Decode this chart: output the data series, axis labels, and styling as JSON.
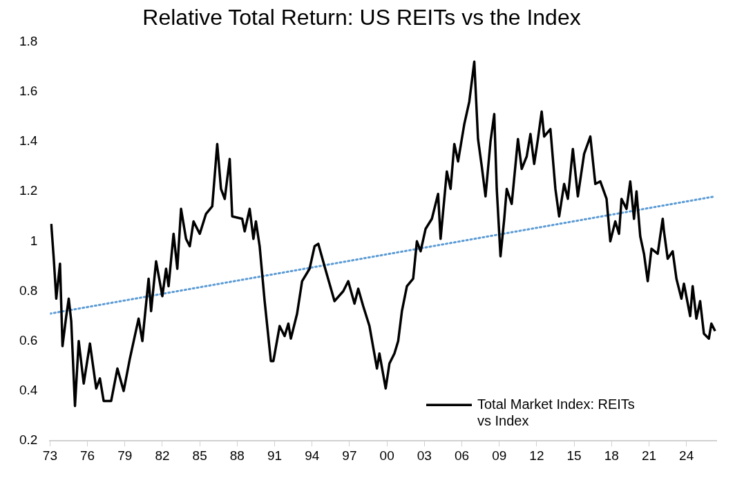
{
  "chart_data": {
    "type": "line",
    "title": "Relative Total Return: US REITs vs the Index",
    "x": [
      1973.1,
      1973.3,
      1973.5,
      1973.8,
      1974.0,
      1974.3,
      1974.5,
      1974.7,
      1975.0,
      1975.3,
      1975.7,
      1976.2,
      1976.7,
      1977.0,
      1977.3,
      1977.9,
      1978.4,
      1978.9,
      1979.4,
      1980.1,
      1980.4,
      1980.9,
      1981.1,
      1981.5,
      1982.0,
      1982.3,
      1982.5,
      1982.9,
      1983.2,
      1983.5,
      1983.9,
      1984.2,
      1984.5,
      1985.0,
      1985.5,
      1986.0,
      1986.4,
      1986.7,
      1987.0,
      1987.4,
      1987.6,
      1988.4,
      1988.6,
      1989.0,
      1989.3,
      1989.5,
      1989.8,
      1990.2,
      1990.7,
      1990.9,
      1991.4,
      1991.8,
      1992.1,
      1992.3,
      1992.8,
      1993.2,
      1993.8,
      1994.2,
      1994.5,
      1995.0,
      1995.8,
      1996.5,
      1996.9,
      1997.4,
      1997.7,
      1998.1,
      1998.6,
      1999.2,
      1999.4,
      1999.9,
      2000.2,
      2000.6,
      2000.9,
      2001.2,
      2001.6,
      2002.1,
      2002.4,
      2002.7,
      2003.1,
      2003.6,
      2004.1,
      2004.3,
      2004.8,
      2005.1,
      2005.4,
      2005.7,
      2006.2,
      2006.6,
      2007.0,
      2007.3,
      2007.6,
      2007.9,
      2008.3,
      2008.6,
      2008.8,
      2009.1,
      2009.4,
      2009.6,
      2010.0,
      2010.5,
      2010.8,
      2011.2,
      2011.5,
      2011.8,
      2012.1,
      2012.4,
      2012.6,
      2013.1,
      2013.5,
      2013.8,
      2014.2,
      2014.5,
      2014.9,
      2015.3,
      2015.8,
      2016.3,
      2016.7,
      2017.1,
      2017.6,
      2017.9,
      2018.3,
      2018.6,
      2018.8,
      2019.2,
      2019.5,
      2019.8,
      2020.0,
      2020.3,
      2020.6,
      2020.9,
      2021.2,
      2021.7,
      2022.1,
      2022.2,
      2022.5,
      2022.9,
      2023.2,
      2023.6,
      2023.8,
      2024.3,
      2024.5,
      2024.8,
      2025.1,
      2025.4,
      2025.8,
      2026.0,
      2026.3
    ],
    "series": [
      {
        "name": "Total Market Index: REITs vs Index",
        "color": "#000000",
        "line_style": "solid",
        "values": [
          1.07,
          0.93,
          0.77,
          0.91,
          0.58,
          0.7,
          0.77,
          0.68,
          0.34,
          0.6,
          0.43,
          0.59,
          0.41,
          0.45,
          0.36,
          0.36,
          0.49,
          0.4,
          0.53,
          0.69,
          0.6,
          0.85,
          0.72,
          0.92,
          0.78,
          0.89,
          0.82,
          1.03,
          0.89,
          1.13,
          1.01,
          0.98,
          1.08,
          1.03,
          1.11,
          1.14,
          1.39,
          1.21,
          1.17,
          1.33,
          1.1,
          1.09,
          1.04,
          1.13,
          1.01,
          1.08,
          0.98,
          0.76,
          0.52,
          0.52,
          0.66,
          0.62,
          0.67,
          0.61,
          0.71,
          0.84,
          0.89,
          0.98,
          0.99,
          0.9,
          0.76,
          0.8,
          0.84,
          0.75,
          0.81,
          0.74,
          0.66,
          0.49,
          0.55,
          0.41,
          0.51,
          0.55,
          0.6,
          0.72,
          0.82,
          0.85,
          1.0,
          0.96,
          1.05,
          1.09,
          1.19,
          1.01,
          1.28,
          1.21,
          1.39,
          1.32,
          1.47,
          1.56,
          1.72,
          1.41,
          1.3,
          1.18,
          1.4,
          1.51,
          1.21,
          0.94,
          1.09,
          1.21,
          1.15,
          1.41,
          1.29,
          1.34,
          1.43,
          1.31,
          1.41,
          1.52,
          1.42,
          1.45,
          1.21,
          1.1,
          1.23,
          1.17,
          1.37,
          1.18,
          1.35,
          1.42,
          1.23,
          1.24,
          1.17,
          1.0,
          1.08,
          1.03,
          1.17,
          1.13,
          1.24,
          1.09,
          1.2,
          1.02,
          0.95,
          0.84,
          0.97,
          0.95,
          1.09,
          1.04,
          0.93,
          0.96,
          0.85,
          0.77,
          0.83,
          0.7,
          0.82,
          0.69,
          0.76,
          0.63,
          0.61,
          0.67,
          0.64
        ]
      },
      {
        "type": "line",
        "color": "#5b9bd5",
        "line_style": "dotted",
        "x": [
          1973,
          2026.3
        ],
        "values": [
          0.71,
          1.18
        ]
      }
    ],
    "xlim": [
      1973,
      2026.4
    ],
    "xticks": [
      {
        "value": 1973,
        "label": "73"
      },
      {
        "value": 1976,
        "label": "76"
      },
      {
        "value": 1979,
        "label": "79"
      },
      {
        "value": 1982,
        "label": "82"
      },
      {
        "value": 1985,
        "label": "85"
      },
      {
        "value": 1988,
        "label": "88"
      },
      {
        "value": 1991,
        "label": "91"
      },
      {
        "value": 1994,
        "label": "94"
      },
      {
        "value": 1997,
        "label": "97"
      },
      {
        "value": 2000,
        "label": "00"
      },
      {
        "value": 2003,
        "label": "03"
      },
      {
        "value": 2006,
        "label": "06"
      },
      {
        "value": 2009,
        "label": "09"
      },
      {
        "value": 2012,
        "label": "12"
      },
      {
        "value": 2015,
        "label": "15"
      },
      {
        "value": 2018,
        "label": "18"
      },
      {
        "value": 2021,
        "label": "21"
      },
      {
        "value": 2024,
        "label": "24"
      }
    ],
    "ylim": [
      0.2,
      1.8
    ],
    "yticks": [
      0.2,
      0.4,
      0.6,
      0.8,
      1,
      1.2,
      1.4,
      1.6,
      1.8
    ],
    "grid": false,
    "marker": "none",
    "legend": "bottom right"
  }
}
